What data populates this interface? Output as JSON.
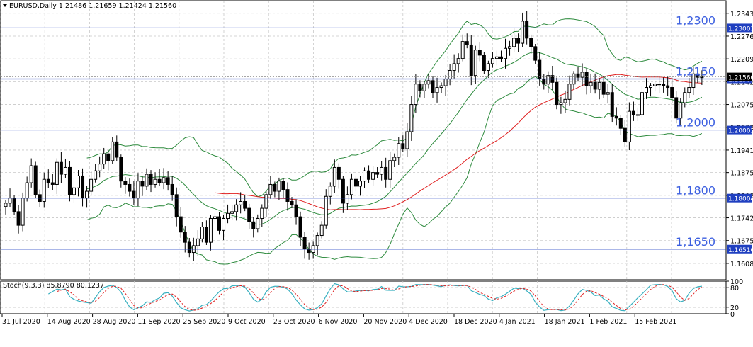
{
  "header": {
    "title": "EURUSD,Daily  1.21486 1.21659 1.21424 1.21560",
    "icon": "triangle-down-icon"
  },
  "indicator": {
    "title": "Stoch(9,3,3) 85.8790 80.1237"
  },
  "colors": {
    "candle": "#000000",
    "bollinger": "#2e8b3e",
    "ma": "#e02020",
    "hline": "#1f3fc0",
    "hline_label": "#3c5fe0",
    "stoch_main": "#38b0c0",
    "stoch_signal": "#e02020",
    "grid": "#c8c8c8"
  },
  "chart_data": [
    {
      "type": "candlestick",
      "symbol": "EURUSD",
      "timeframe": "Daily",
      "ylim": [
        1.156,
        1.238
      ],
      "y_ticks": [
        "1.23430",
        "1.22760",
        "1.22090",
        "1.21420",
        "1.20750",
        "1.20080",
        "1.19410",
        "1.18750",
        "1.18080",
        "1.17420",
        "1.16750",
        "1.16080"
      ],
      "x_labels": [
        "31 Jul 2020",
        "14 Aug 2020",
        "28 Aug 2020",
        "11 Sep 2020",
        "25 Sep 2020",
        "9 Oct 2020",
        "23 Oct 2020",
        "6 Nov 2020",
        "20 Nov 2020",
        "4 Dec 2020",
        "18 Dec 2020",
        "4 Jan 2021",
        "18 Jan 2021",
        "1 Feb 2021",
        "15 Feb 2021"
      ],
      "levels": [
        {
          "value": 1.23,
          "label": "1,2300",
          "tag": "1.23003"
        },
        {
          "value": 1.215,
          "label": "1,2150",
          "tag": "1.21501"
        },
        {
          "value": 1.2,
          "label": "1,2000",
          "tag": "1.20002"
        },
        {
          "value": 1.18,
          "label": "1,1800",
          "tag": "1.18004"
        },
        {
          "value": 1.165,
          "label": "1,1650",
          "tag": "1.16510"
        }
      ],
      "last_price_tag": "1.21560",
      "close": [
        1.1785,
        1.18,
        1.176,
        1.172,
        1.18,
        1.1845,
        1.1895,
        1.181,
        1.179,
        1.1855,
        1.1845,
        1.184,
        1.1905,
        1.187,
        1.189,
        1.181,
        1.183,
        1.1865,
        1.18,
        1.182,
        1.1855,
        1.188,
        1.19,
        1.193,
        1.191,
        1.1965,
        1.192,
        1.185,
        1.184,
        1.182,
        1.18,
        1.185,
        1.1835,
        1.187,
        1.184,
        1.1855,
        1.1845,
        1.186,
        1.184,
        1.181,
        1.1745,
        1.17,
        1.167,
        1.164,
        1.166,
        1.168,
        1.1715,
        1.167,
        1.174,
        1.1745,
        1.1705,
        1.174,
        1.1755,
        1.176,
        1.178,
        1.179,
        1.177,
        1.173,
        1.171,
        1.174,
        1.177,
        1.181,
        1.184,
        1.182,
        1.185,
        1.1825,
        1.179,
        1.178,
        1.1745,
        1.1685,
        1.165,
        1.164,
        1.166,
        1.169,
        1.172,
        1.1805,
        1.1835,
        1.189,
        1.1855,
        1.1785,
        1.181,
        1.1855,
        1.1835,
        1.185,
        1.188,
        1.1855,
        1.1875,
        1.187,
        1.189,
        1.1855,
        1.191,
        1.192,
        1.196,
        1.1945,
        1.1995,
        1.2075,
        1.2135,
        1.2115,
        1.2135,
        1.2145,
        1.211,
        1.2125,
        1.213,
        1.215,
        1.2175,
        1.2195,
        1.221,
        1.226,
        1.225,
        1.216,
        1.2235,
        1.222,
        1.2175,
        1.2195,
        1.221,
        1.2215,
        1.221,
        1.224,
        1.2245,
        1.227,
        1.2255,
        1.232,
        1.227,
        1.2245,
        1.2205,
        1.215,
        1.2135,
        1.216,
        1.214,
        1.2075,
        1.208,
        1.209,
        1.2135,
        1.2165,
        1.2155,
        1.217,
        1.213,
        1.214,
        1.212,
        1.214,
        1.2105,
        1.211,
        1.204,
        1.2035,
        1.2005,
        1.1965,
        1.2055,
        1.2045,
        1.2045,
        1.211,
        1.2125,
        1.213,
        1.2135,
        1.2135,
        1.213,
        1.2125,
        1.2095,
        1.2035,
        1.208,
        1.211,
        1.2125,
        1.2165,
        1.2155,
        1.2156
      ]
    },
    {
      "type": "line",
      "name": "Stoch(9,3,3)",
      "values_text": "85.8790 80.1237",
      "ylim": [
        0,
        100
      ],
      "y_ticks": [
        "100",
        "80",
        "20",
        "0"
      ]
    }
  ]
}
